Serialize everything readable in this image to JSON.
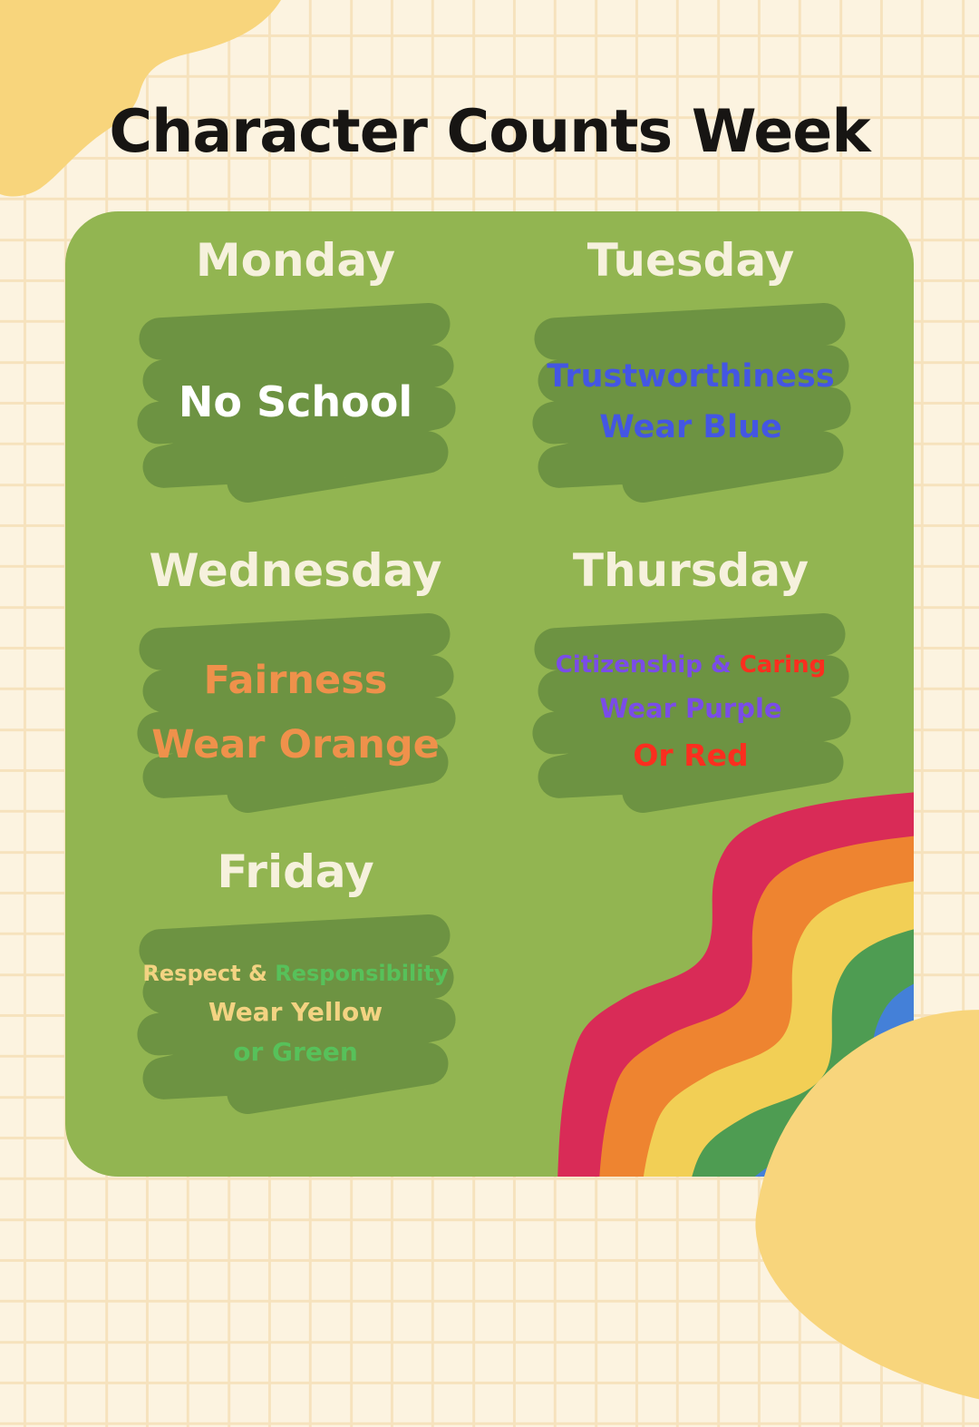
{
  "title": "Character Counts Week",
  "palette": {
    "background_cream": "#fcf3e0",
    "grid_line": "#f6e2bd",
    "blob_yellow": "#f8d57c",
    "card_green": "#92b551",
    "scribble_green": "#6d9342",
    "title_black": "#171513",
    "day_header_cream": "#f6f1dd",
    "text_colors": {
      "white": "#ffffff",
      "blue": "#4456e3",
      "orange": "#ef914b",
      "purple": "#7a4ce8",
      "red": "#fb2e1f",
      "yellow": "#f3d382",
      "green": "#57c15a"
    }
  },
  "days": [
    {
      "name": "Monday",
      "lines": [
        [
          {
            "t": "No School",
            "c": "white"
          }
        ]
      ]
    },
    {
      "name": "Tuesday",
      "lines": [
        [
          {
            "t": "Trustworthiness",
            "c": "blue"
          }
        ],
        [
          {
            "t": "Wear Blue",
            "c": "blue"
          }
        ]
      ]
    },
    {
      "name": "Wednesday",
      "lines": [
        [
          {
            "t": "Fairness",
            "c": "orange"
          }
        ],
        [
          {
            "t": "Wear Orange",
            "c": "orange"
          }
        ]
      ]
    },
    {
      "name": "Thursday",
      "lines": [
        [
          {
            "t": "Citizenship & ",
            "c": "purple"
          },
          {
            "t": "Caring",
            "c": "red"
          }
        ],
        [
          {
            "t": "Wear Purple",
            "c": "purple"
          }
        ],
        [
          {
            "t": "Or Red",
            "c": "red"
          }
        ]
      ]
    },
    {
      "name": "Friday",
      "lines": [
        [
          {
            "t": "Respect & ",
            "c": "yellow"
          },
          {
            "t": "Responsibility",
            "c": "green"
          }
        ],
        [
          {
            "t": "Wear Yellow",
            "c": "yellow"
          }
        ],
        [
          {
            "t": "or Green",
            "c": "green"
          }
        ]
      ]
    }
  ],
  "rainbow": {
    "stripes": [
      "#d92b57",
      "#ee8430",
      "#f2cf55",
      "#4e9c52",
      "#4480d8",
      "#ac86d0"
    ]
  }
}
